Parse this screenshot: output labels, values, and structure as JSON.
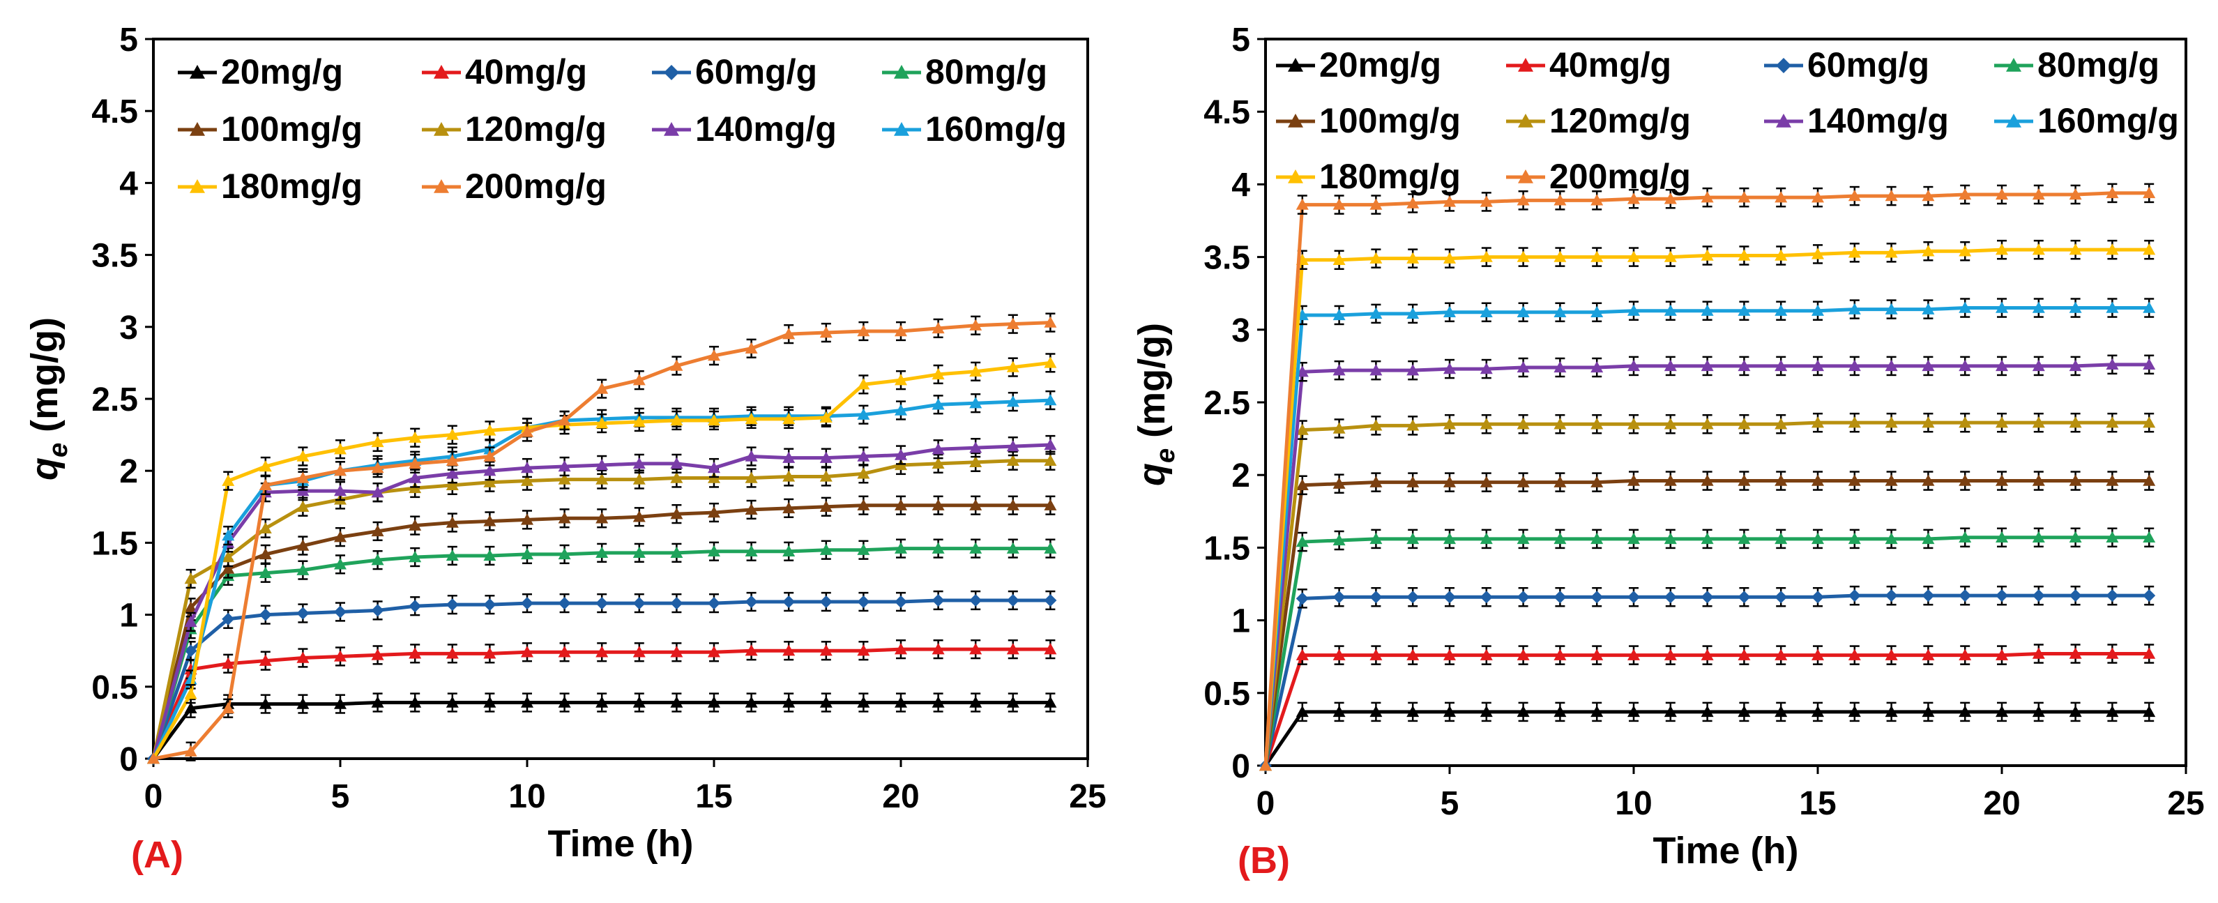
{
  "colors": {
    "20mg/g": "#000000",
    "40mg/g": "#e31a1c",
    "60mg/g": "#1f5fa6",
    "80mg/g": "#1fa35b",
    "100mg/g": "#7b4011",
    "120mg/g": "#b8900f",
    "140mg/g": "#7a3da8",
    "160mg/g": "#1aa0dc",
    "180mg/g": "#ffc000",
    "200mg/g": "#ed7d31",
    "panel_label": "#e31a1c"
  },
  "chart_data": [
    {
      "type": "line",
      "panel_label": "(A)",
      "xlabel": "Time (h)",
      "ylabel_main": "q",
      "ylabel_sub": "e",
      "ylabel_unit": " (mg/g)",
      "xlim": [
        0,
        25
      ],
      "ylim": [
        0,
        5
      ],
      "xticks": [
        "0",
        "5",
        "10",
        "15",
        "20",
        "25"
      ],
      "yticks": [
        "0",
        "0.5",
        "1",
        "1.5",
        "2",
        "2.5",
        "3",
        "3.5",
        "4",
        "4.5",
        "5"
      ],
      "x": [
        0,
        1,
        2,
        3,
        4,
        5,
        6,
        7,
        8,
        9,
        10,
        11,
        12,
        13,
        14,
        15,
        16,
        17,
        18,
        19,
        20,
        21,
        22,
        23,
        24
      ],
      "series": [
        {
          "name": "20mg/g",
          "values": [
            0,
            0.35,
            0.38,
            0.38,
            0.38,
            0.38,
            0.39,
            0.39,
            0.39,
            0.39,
            0.39,
            0.39,
            0.39,
            0.39,
            0.39,
            0.39,
            0.39,
            0.39,
            0.39,
            0.39,
            0.39,
            0.39,
            0.39,
            0.39,
            0.39
          ]
        },
        {
          "name": "40mg/g",
          "values": [
            0,
            0.62,
            0.66,
            0.68,
            0.7,
            0.71,
            0.72,
            0.73,
            0.73,
            0.73,
            0.74,
            0.74,
            0.74,
            0.74,
            0.74,
            0.74,
            0.75,
            0.75,
            0.75,
            0.75,
            0.76,
            0.76,
            0.76,
            0.76,
            0.76
          ]
        },
        {
          "name": "60mg/g",
          "values": [
            0,
            0.75,
            0.97,
            1.0,
            1.01,
            1.02,
            1.03,
            1.06,
            1.07,
            1.07,
            1.08,
            1.08,
            1.08,
            1.08,
            1.08,
            1.08,
            1.09,
            1.09,
            1.09,
            1.09,
            1.09,
            1.1,
            1.1,
            1.1,
            1.1
          ]
        },
        {
          "name": "80mg/g",
          "values": [
            0,
            0.9,
            1.27,
            1.29,
            1.31,
            1.35,
            1.38,
            1.4,
            1.41,
            1.41,
            1.42,
            1.42,
            1.43,
            1.43,
            1.43,
            1.44,
            1.44,
            1.44,
            1.45,
            1.45,
            1.46,
            1.46,
            1.46,
            1.46,
            1.46
          ]
        },
        {
          "name": "100mg/g",
          "values": [
            0,
            1.05,
            1.32,
            1.42,
            1.48,
            1.54,
            1.58,
            1.62,
            1.64,
            1.65,
            1.66,
            1.67,
            1.67,
            1.68,
            1.7,
            1.71,
            1.73,
            1.74,
            1.75,
            1.76,
            1.76,
            1.76,
            1.76,
            1.76,
            1.76
          ]
        },
        {
          "name": "120mg/g",
          "values": [
            0,
            1.25,
            1.4,
            1.6,
            1.75,
            1.8,
            1.85,
            1.88,
            1.9,
            1.92,
            1.93,
            1.94,
            1.94,
            1.94,
            1.95,
            1.95,
            1.95,
            1.96,
            1.96,
            1.98,
            2.04,
            2.05,
            2.06,
            2.07,
            2.07
          ]
        },
        {
          "name": "140mg/g",
          "values": [
            0,
            0.95,
            1.5,
            1.85,
            1.86,
            1.86,
            1.85,
            1.95,
            1.98,
            2.0,
            2.02,
            2.03,
            2.04,
            2.05,
            2.05,
            2.02,
            2.1,
            2.09,
            2.09,
            2.1,
            2.11,
            2.15,
            2.16,
            2.17,
            2.18
          ]
        },
        {
          "name": "160mg/g",
          "values": [
            0,
            0.55,
            1.55,
            1.9,
            1.93,
            2.0,
            2.04,
            2.07,
            2.1,
            2.15,
            2.3,
            2.35,
            2.36,
            2.37,
            2.37,
            2.37,
            2.38,
            2.38,
            2.38,
            2.39,
            2.42,
            2.46,
            2.47,
            2.48,
            2.49
          ]
        },
        {
          "name": "180mg/g",
          "values": [
            0,
            0.45,
            1.93,
            2.03,
            2.1,
            2.15,
            2.2,
            2.23,
            2.25,
            2.28,
            2.3,
            2.32,
            2.33,
            2.34,
            2.35,
            2.35,
            2.36,
            2.36,
            2.37,
            2.6,
            2.63,
            2.67,
            2.69,
            2.72,
            2.75
          ]
        },
        {
          "name": "200mg/g",
          "values": [
            0,
            0.05,
            0.35,
            1.9,
            1.95,
            2.0,
            2.02,
            2.05,
            2.07,
            2.1,
            2.27,
            2.35,
            2.57,
            2.63,
            2.73,
            2.8,
            2.85,
            2.95,
            2.96,
            2.97,
            2.97,
            2.99,
            3.01,
            3.02,
            3.03
          ]
        }
      ]
    },
    {
      "type": "line",
      "panel_label": "(B)",
      "xlabel": "Time (h)",
      "ylabel_main": "q",
      "ylabel_sub": "e",
      "ylabel_unit": " (mg/g)",
      "xlim": [
        0,
        25
      ],
      "ylim": [
        0,
        5
      ],
      "xticks": [
        "0",
        "5",
        "10",
        "15",
        "20",
        "25"
      ],
      "yticks": [
        "0",
        "0.5",
        "1",
        "1.5",
        "2",
        "2.5",
        "3",
        "3.5",
        "4",
        "4.5",
        "5"
      ],
      "x": [
        0,
        1,
        2,
        3,
        4,
        5,
        6,
        7,
        8,
        9,
        10,
        11,
        12,
        13,
        14,
        15,
        16,
        17,
        18,
        19,
        20,
        21,
        22,
        23,
        24
      ],
      "series": [
        {
          "name": "20mg/g",
          "values": [
            0,
            0.37,
            0.37,
            0.37,
            0.37,
            0.37,
            0.37,
            0.37,
            0.37,
            0.37,
            0.37,
            0.37,
            0.37,
            0.37,
            0.37,
            0.37,
            0.37,
            0.37,
            0.37,
            0.37,
            0.37,
            0.37,
            0.37,
            0.37,
            0.37
          ]
        },
        {
          "name": "40mg/g",
          "values": [
            0,
            0.76,
            0.76,
            0.76,
            0.76,
            0.76,
            0.76,
            0.76,
            0.76,
            0.76,
            0.76,
            0.76,
            0.76,
            0.76,
            0.76,
            0.76,
            0.76,
            0.76,
            0.76,
            0.76,
            0.76,
            0.77,
            0.77,
            0.77,
            0.77
          ]
        },
        {
          "name": "60mg/g",
          "values": [
            0,
            1.15,
            1.16,
            1.16,
            1.16,
            1.16,
            1.16,
            1.16,
            1.16,
            1.16,
            1.16,
            1.16,
            1.16,
            1.16,
            1.16,
            1.16,
            1.17,
            1.17,
            1.17,
            1.17,
            1.17,
            1.17,
            1.17,
            1.17,
            1.17
          ]
        },
        {
          "name": "80mg/g",
          "values": [
            0,
            1.54,
            1.55,
            1.56,
            1.56,
            1.56,
            1.56,
            1.56,
            1.56,
            1.56,
            1.56,
            1.56,
            1.56,
            1.56,
            1.56,
            1.56,
            1.56,
            1.56,
            1.56,
            1.57,
            1.57,
            1.57,
            1.57,
            1.57,
            1.57
          ]
        },
        {
          "name": "100mg/g",
          "values": [
            0,
            1.93,
            1.94,
            1.95,
            1.95,
            1.95,
            1.95,
            1.95,
            1.95,
            1.95,
            1.96,
            1.96,
            1.96,
            1.96,
            1.96,
            1.96,
            1.96,
            1.96,
            1.96,
            1.96,
            1.96,
            1.96,
            1.96,
            1.96,
            1.96
          ]
        },
        {
          "name": "120mg/g",
          "values": [
            0,
            2.31,
            2.32,
            2.34,
            2.34,
            2.35,
            2.35,
            2.35,
            2.35,
            2.35,
            2.35,
            2.35,
            2.35,
            2.35,
            2.35,
            2.36,
            2.36,
            2.36,
            2.36,
            2.36,
            2.36,
            2.36,
            2.36,
            2.36,
            2.36
          ]
        },
        {
          "name": "140mg/g",
          "values": [
            0,
            2.71,
            2.72,
            2.72,
            2.72,
            2.73,
            2.73,
            2.74,
            2.74,
            2.74,
            2.75,
            2.75,
            2.75,
            2.75,
            2.75,
            2.75,
            2.75,
            2.75,
            2.75,
            2.75,
            2.75,
            2.75,
            2.75,
            2.76,
            2.76
          ]
        },
        {
          "name": "160mg/g",
          "values": [
            0,
            3.1,
            3.1,
            3.11,
            3.11,
            3.12,
            3.12,
            3.12,
            3.12,
            3.12,
            3.13,
            3.13,
            3.13,
            3.13,
            3.13,
            3.13,
            3.14,
            3.14,
            3.14,
            3.15,
            3.15,
            3.15,
            3.15,
            3.15,
            3.15
          ]
        },
        {
          "name": "180mg/g",
          "values": [
            0,
            3.48,
            3.48,
            3.49,
            3.49,
            3.49,
            3.5,
            3.5,
            3.5,
            3.5,
            3.5,
            3.5,
            3.51,
            3.51,
            3.51,
            3.52,
            3.53,
            3.53,
            3.54,
            3.54,
            3.55,
            3.55,
            3.55,
            3.55,
            3.55
          ]
        },
        {
          "name": "200mg/g",
          "values": [
            0,
            3.86,
            3.86,
            3.86,
            3.87,
            3.88,
            3.88,
            3.89,
            3.89,
            3.89,
            3.9,
            3.9,
            3.91,
            3.91,
            3.91,
            3.91,
            3.92,
            3.92,
            3.92,
            3.93,
            3.93,
            3.93,
            3.93,
            3.94,
            3.94
          ]
        }
      ]
    }
  ]
}
